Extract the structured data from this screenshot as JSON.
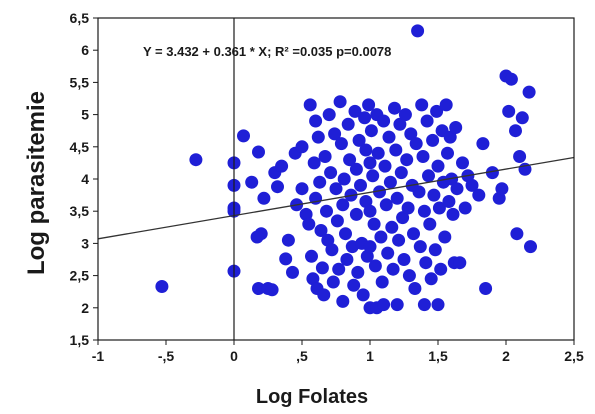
{
  "chart_data": {
    "type": "scatter",
    "title": "",
    "xlabel": "Log Folates",
    "ylabel": "Log parasitemie",
    "xlim": [
      -1,
      2.5
    ],
    "ylim": [
      1.5,
      6.5
    ],
    "x_tick_labels": [
      "-1",
      "-,5",
      "0",
      ",5",
      "1",
      "1,5",
      "2",
      "2,5"
    ],
    "x_tick_values": [
      -1,
      -0.5,
      0,
      0.5,
      1,
      1.5,
      2,
      2.5
    ],
    "y_tick_labels": [
      "1,5",
      "2",
      "2,5",
      "3",
      "3,5",
      "4",
      "4,5",
      "5",
      "5,5",
      "6",
      "6,5"
    ],
    "y_tick_values": [
      1.5,
      2,
      2.5,
      3,
      3.5,
      4,
      4.5,
      5,
      5.5,
      6,
      6.5
    ],
    "annotation": "Y = 3.432 + 0.361 * X; R² =0.035 p=0.0078",
    "regression": {
      "intercept": 3.432,
      "slope": 0.361
    },
    "grid": false,
    "marker_color": "#1f1fd6",
    "line_color": "#333333",
    "points": [
      [
        -0.53,
        2.33
      ],
      [
        -0.28,
        4.3
      ],
      [
        0.0,
        4.25
      ],
      [
        0.0,
        3.9
      ],
      [
        0.0,
        3.55
      ],
      [
        0.0,
        3.5
      ],
      [
        0.0,
        2.57
      ],
      [
        0.07,
        4.67
      ],
      [
        0.13,
        3.95
      ],
      [
        0.18,
        4.42
      ],
      [
        0.2,
        3.15
      ],
      [
        0.17,
        3.1
      ],
      [
        0.18,
        2.3
      ],
      [
        0.22,
        3.7
      ],
      [
        0.25,
        2.3
      ],
      [
        0.28,
        2.28
      ],
      [
        0.3,
        4.1
      ],
      [
        0.32,
        3.88
      ],
      [
        0.35,
        4.2
      ],
      [
        0.38,
        2.76
      ],
      [
        0.4,
        3.05
      ],
      [
        0.43,
        2.55
      ],
      [
        0.45,
        4.4
      ],
      [
        0.46,
        3.6
      ],
      [
        0.5,
        4.5
      ],
      [
        0.5,
        3.85
      ],
      [
        0.53,
        3.45
      ],
      [
        0.55,
        3.3
      ],
      [
        0.56,
        5.15
      ],
      [
        0.57,
        2.8
      ],
      [
        0.58,
        2.45
      ],
      [
        0.59,
        4.25
      ],
      [
        0.6,
        4.9
      ],
      [
        0.6,
        3.7
      ],
      [
        0.61,
        2.3
      ],
      [
        0.62,
        4.65
      ],
      [
        0.63,
        3.95
      ],
      [
        0.64,
        3.2
      ],
      [
        0.65,
        2.62
      ],
      [
        0.66,
        2.2
      ],
      [
        0.67,
        4.35
      ],
      [
        0.68,
        3.5
      ],
      [
        0.69,
        3.05
      ],
      [
        0.7,
        5.0
      ],
      [
        0.71,
        4.1
      ],
      [
        0.72,
        2.9
      ],
      [
        0.73,
        2.4
      ],
      [
        0.74,
        4.7
      ],
      [
        0.75,
        3.85
      ],
      [
        0.76,
        3.35
      ],
      [
        0.77,
        2.6
      ],
      [
        0.78,
        5.2
      ],
      [
        0.79,
        4.55
      ],
      [
        0.8,
        3.6
      ],
      [
        0.8,
        2.1
      ],
      [
        0.81,
        4.0
      ],
      [
        0.82,
        3.15
      ],
      [
        0.83,
        2.75
      ],
      [
        0.84,
        4.85
      ],
      [
        0.85,
        4.3
      ],
      [
        0.86,
        3.75
      ],
      [
        0.87,
        2.95
      ],
      [
        0.88,
        2.35
      ],
      [
        0.89,
        5.05
      ],
      [
        0.9,
        4.15
      ],
      [
        0.9,
        3.45
      ],
      [
        0.91,
        2.55
      ],
      [
        0.92,
        4.6
      ],
      [
        0.93,
        3.9
      ],
      [
        0.94,
        3.0
      ],
      [
        0.95,
        2.2
      ],
      [
        0.96,
        4.95
      ],
      [
        0.97,
        4.45
      ],
      [
        0.97,
        3.65
      ],
      [
        0.98,
        2.8
      ],
      [
        0.99,
        5.15
      ],
      [
        1.0,
        4.25
      ],
      [
        1.0,
        3.5
      ],
      [
        1.0,
        2.95
      ],
      [
        1.0,
        2.0
      ],
      [
        1.01,
        4.75
      ],
      [
        1.02,
        4.05
      ],
      [
        1.03,
        3.3
      ],
      [
        1.04,
        2.65
      ],
      [
        1.05,
        5.0
      ],
      [
        1.05,
        2.0
      ],
      [
        1.06,
        4.4
      ],
      [
        1.07,
        3.8
      ],
      [
        1.08,
        3.1
      ],
      [
        1.09,
        2.4
      ],
      [
        1.1,
        4.9
      ],
      [
        1.1,
        2.05
      ],
      [
        1.11,
        4.2
      ],
      [
        1.12,
        3.6
      ],
      [
        1.13,
        2.85
      ],
      [
        1.14,
        4.65
      ],
      [
        1.15,
        3.95
      ],
      [
        1.16,
        3.25
      ],
      [
        1.17,
        2.6
      ],
      [
        1.18,
        5.1
      ],
      [
        1.19,
        4.45
      ],
      [
        1.2,
        3.7
      ],
      [
        1.2,
        2.05
      ],
      [
        1.21,
        3.05
      ],
      [
        1.22,
        4.85
      ],
      [
        1.23,
        4.1
      ],
      [
        1.24,
        3.4
      ],
      [
        1.25,
        2.75
      ],
      [
        1.26,
        5.0
      ],
      [
        1.27,
        4.3
      ],
      [
        1.28,
        3.55
      ],
      [
        1.29,
        2.5
      ],
      [
        1.3,
        4.7
      ],
      [
        1.31,
        3.9
      ],
      [
        1.32,
        3.15
      ],
      [
        1.33,
        2.3
      ],
      [
        1.34,
        4.55
      ],
      [
        1.35,
        6.3
      ],
      [
        1.36,
        3.8
      ],
      [
        1.37,
        2.95
      ],
      [
        1.38,
        5.15
      ],
      [
        1.39,
        4.35
      ],
      [
        1.4,
        3.5
      ],
      [
        1.4,
        2.05
      ],
      [
        1.41,
        2.7
      ],
      [
        1.42,
        4.9
      ],
      [
        1.43,
        4.05
      ],
      [
        1.44,
        3.3
      ],
      [
        1.45,
        2.45
      ],
      [
        1.46,
        4.6
      ],
      [
        1.47,
        3.75
      ],
      [
        1.48,
        2.9
      ],
      [
        1.49,
        5.05
      ],
      [
        1.5,
        4.2
      ],
      [
        1.5,
        2.05
      ],
      [
        1.51,
        3.55
      ],
      [
        1.52,
        2.6
      ],
      [
        1.53,
        4.75
      ],
      [
        1.54,
        3.95
      ],
      [
        1.55,
        3.1
      ],
      [
        1.56,
        5.15
      ],
      [
        1.57,
        4.4
      ],
      [
        1.58,
        3.65
      ],
      [
        1.59,
        4.65
      ],
      [
        1.6,
        4.0
      ],
      [
        1.61,
        3.45
      ],
      [
        1.62,
        2.7
      ],
      [
        1.63,
        4.8
      ],
      [
        1.64,
        3.85
      ],
      [
        1.66,
        2.7
      ],
      [
        1.68,
        4.25
      ],
      [
        1.7,
        3.55
      ],
      [
        1.72,
        4.05
      ],
      [
        1.75,
        3.9
      ],
      [
        1.8,
        3.75
      ],
      [
        1.83,
        4.55
      ],
      [
        1.85,
        2.3
      ],
      [
        1.9,
        4.1
      ],
      [
        1.95,
        3.7
      ],
      [
        1.97,
        3.85
      ],
      [
        2.0,
        5.6
      ],
      [
        2.02,
        5.05
      ],
      [
        2.04,
        5.55
      ],
      [
        2.07,
        4.75
      ],
      [
        2.08,
        3.15
      ],
      [
        2.1,
        4.35
      ],
      [
        2.12,
        4.95
      ],
      [
        2.14,
        4.15
      ],
      [
        2.17,
        5.35
      ],
      [
        2.18,
        2.95
      ]
    ]
  }
}
